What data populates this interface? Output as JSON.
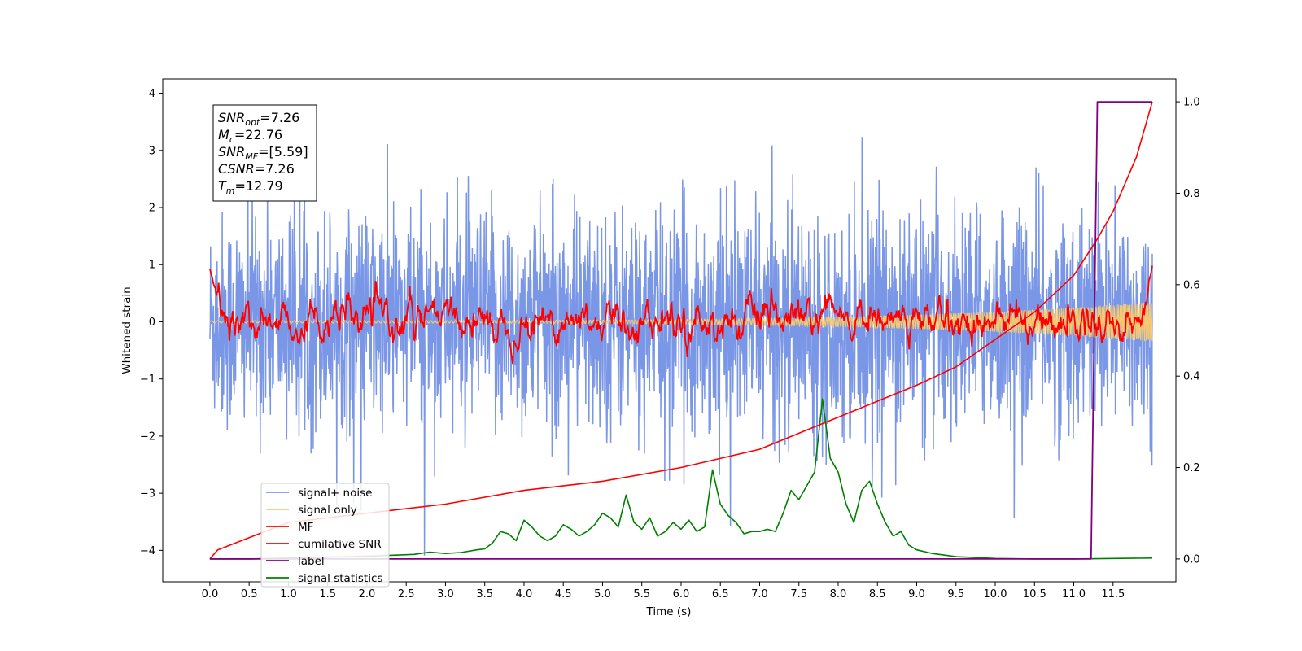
{
  "chart_data": {
    "type": "line",
    "title": "",
    "xlabel": "Time (s)",
    "ylabel": "Whitened strain",
    "y2label": "",
    "xlim": [
      -0.6,
      12.3
    ],
    "ylim": [
      -4.55,
      4.25
    ],
    "y2lim": [
      -0.05,
      1.05
    ],
    "x_ticks": [
      "0.0",
      "0.5",
      "1.0",
      "1.5",
      "2.0",
      "2.5",
      "3.0",
      "3.5",
      "4.0",
      "4.5",
      "5.0",
      "5.5",
      "6.0",
      "6.5",
      "7.0",
      "7.5",
      "8.0",
      "8.5",
      "9.0",
      "9.5",
      "10.0",
      "10.5",
      "11.0",
      "11.5"
    ],
    "y_ticks": [
      "−4",
      "−3",
      "−2",
      "−1",
      "0",
      "1",
      "2",
      "3",
      "4"
    ],
    "y2_ticks": [
      "0.0",
      "0.2",
      "0.4",
      "0.6",
      "0.8",
      "1.0"
    ],
    "grid": false,
    "legend_position": "lower-left",
    "series": [
      {
        "name": "signal+ noise",
        "axis": "left",
        "color": "#7a96e6",
        "style": "dense noise, x 0 to 12, std approx 1, spikes up to 3.9",
        "x_range": [
          0.0,
          12.0
        ]
      },
      {
        "name": "signal only",
        "axis": "left",
        "color": "#f7ca70",
        "style": "chirp, amplitude growing from 0 to 0.35 near x=12",
        "x_range": [
          0.0,
          12.0
        ]
      },
      {
        "name": "MF",
        "axis": "left",
        "color": "#ff0000",
        "style": "matched-filter output, fluctuating around 0 with peaks near 0.5",
        "x_range": [
          0.0,
          12.0
        ],
        "start_value": 0.93,
        "end_value": 0.98
      },
      {
        "name": "cumilative SNR",
        "axis": "right",
        "color": "#ff0000",
        "x": [
          0.0,
          0.1,
          1.0,
          2.0,
          3.0,
          4.0,
          5.0,
          6.0,
          7.0,
          8.0,
          9.0,
          9.5,
          10.0,
          10.5,
          11.0,
          11.3,
          11.5,
          11.8,
          12.0
        ],
        "y": [
          0.0,
          0.02,
          0.08,
          0.1,
          0.12,
          0.15,
          0.17,
          0.2,
          0.24,
          0.31,
          0.38,
          0.42,
          0.48,
          0.54,
          0.62,
          0.7,
          0.76,
          0.88,
          1.0
        ]
      },
      {
        "name": "label",
        "axis": "right",
        "color": "#800080",
        "x": [
          0.0,
          11.22,
          11.3,
          12.0
        ],
        "y": [
          0.0,
          0.0,
          1.0,
          1.0
        ]
      },
      {
        "name": "signal statistics",
        "axis": "right",
        "color": "#008000",
        "x": [
          0.0,
          0.5,
          1.0,
          1.5,
          2.0,
          2.3,
          2.6,
          2.8,
          3.0,
          3.2,
          3.4,
          3.5,
          3.6,
          3.7,
          3.8,
          3.9,
          4.0,
          4.1,
          4.2,
          4.3,
          4.4,
          4.5,
          4.6,
          4.7,
          4.8,
          4.9,
          5.0,
          5.1,
          5.2,
          5.3,
          5.4,
          5.5,
          5.6,
          5.7,
          5.8,
          5.9,
          6.0,
          6.1,
          6.2,
          6.3,
          6.4,
          6.5,
          6.6,
          6.7,
          6.8,
          6.9,
          7.0,
          7.1,
          7.2,
          7.3,
          7.4,
          7.5,
          7.6,
          7.7,
          7.8,
          7.9,
          8.0,
          8.1,
          8.2,
          8.3,
          8.4,
          8.5,
          8.6,
          8.7,
          8.8,
          8.9,
          9.0,
          9.2,
          9.5,
          10.0,
          10.5,
          11.0,
          11.5,
          12.0
        ],
        "y": [
          0.0,
          0.0,
          0.002,
          0.004,
          0.006,
          0.008,
          0.01,
          0.015,
          0.012,
          0.014,
          0.02,
          0.022,
          0.035,
          0.06,
          0.055,
          0.04,
          0.085,
          0.07,
          0.05,
          0.04,
          0.05,
          0.075,
          0.065,
          0.05,
          0.06,
          0.075,
          0.1,
          0.09,
          0.07,
          0.14,
          0.08,
          0.065,
          0.09,
          0.05,
          0.06,
          0.08,
          0.065,
          0.085,
          0.06,
          0.07,
          0.195,
          0.12,
          0.095,
          0.08,
          0.055,
          0.06,
          0.06,
          0.065,
          0.06,
          0.1,
          0.15,
          0.13,
          0.16,
          0.19,
          0.35,
          0.22,
          0.19,
          0.12,
          0.08,
          0.15,
          0.17,
          0.12,
          0.08,
          0.05,
          0.06,
          0.03,
          0.02,
          0.012,
          0.005,
          0.001,
          0.0,
          0.0,
          0.001,
          0.002
        ]
      }
    ],
    "annotations": [
      {
        "base": "SNR",
        "sub": "opt",
        "rest": "=7.26"
      },
      {
        "base": "M",
        "sub": "c",
        "rest": "=22.76"
      },
      {
        "base": "SNR",
        "sub": "MF",
        "rest": "=[5.59]"
      },
      {
        "base": "CSNR",
        "sub": "",
        "rest": "=7.26"
      },
      {
        "base": "T",
        "sub": "m",
        "rest": "=12.79"
      }
    ]
  }
}
